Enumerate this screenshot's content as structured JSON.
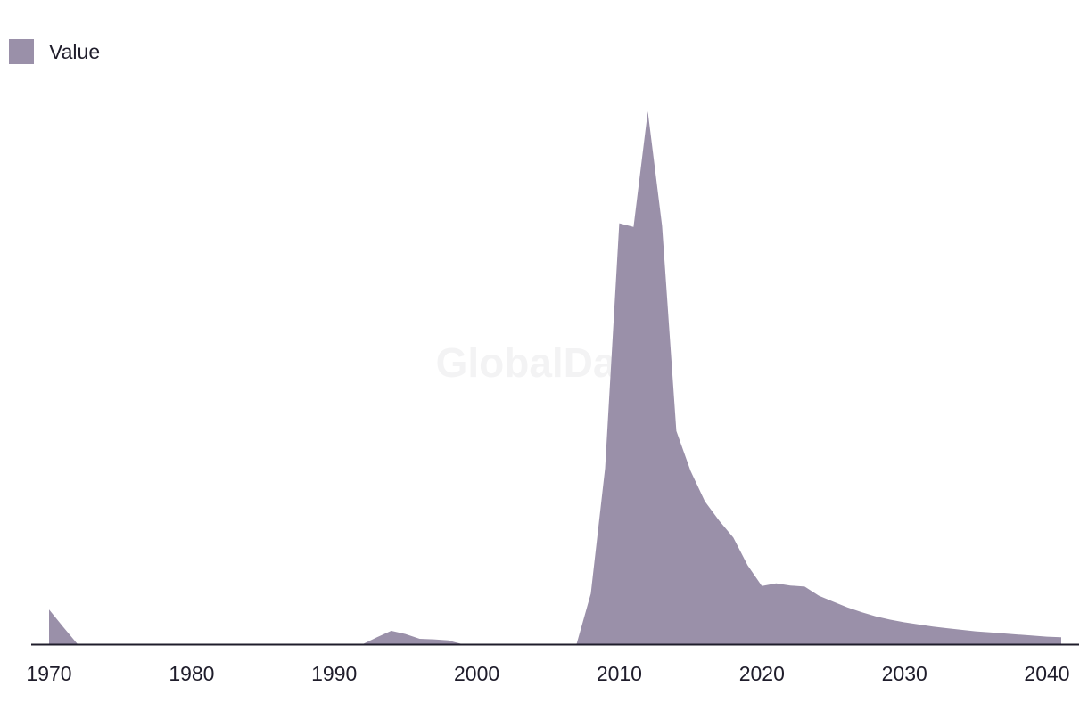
{
  "watermark": "GlobalData",
  "chart_data": {
    "type": "area",
    "title": "",
    "xlabel": "",
    "ylabel": "",
    "xlim": [
      1970,
      2041
    ],
    "ylim": [
      0,
      100
    ],
    "grid": false,
    "legend_position": "top-left",
    "color": "#9a90a9",
    "axis_color": "#1f1d2b",
    "x_ticks": [
      1970,
      1980,
      1990,
      2000,
      2010,
      2020,
      2030,
      2040
    ],
    "x_tick_labels": [
      "1970",
      "1980",
      "1990",
      "2000",
      "2010",
      "2020",
      "2030",
      "2040"
    ],
    "series": [
      {
        "name": "Value",
        "points": [
          [
            1970,
            6.5
          ],
          [
            1971,
            3.2
          ],
          [
            1972,
            0
          ],
          [
            1973,
            0
          ],
          [
            1974,
            0
          ],
          [
            1975,
            0
          ],
          [
            1976,
            0
          ],
          [
            1977,
            0
          ],
          [
            1978,
            0
          ],
          [
            1979,
            0
          ],
          [
            1980,
            0
          ],
          [
            1981,
            0
          ],
          [
            1982,
            0
          ],
          [
            1983,
            0
          ],
          [
            1984,
            0
          ],
          [
            1985,
            0
          ],
          [
            1986,
            0
          ],
          [
            1987,
            0
          ],
          [
            1988,
            0
          ],
          [
            1989,
            0
          ],
          [
            1990,
            0
          ],
          [
            1991,
            0
          ],
          [
            1992,
            0
          ],
          [
            1993,
            1.3
          ],
          [
            1994,
            2.5
          ],
          [
            1995,
            1.9
          ],
          [
            1996,
            1.0
          ],
          [
            1997,
            0.9
          ],
          [
            1998,
            0.7
          ],
          [
            1999,
            0
          ],
          [
            2000,
            0
          ],
          [
            2001,
            0
          ],
          [
            2002,
            0
          ],
          [
            2003,
            0
          ],
          [
            2004,
            0
          ],
          [
            2005,
            0
          ],
          [
            2006,
            0
          ],
          [
            2007,
            0
          ],
          [
            2008,
            9.5
          ],
          [
            2009,
            33.0
          ],
          [
            2010,
            79.0
          ],
          [
            2011,
            78.3
          ],
          [
            2012,
            100.0
          ],
          [
            2013,
            78.5
          ],
          [
            2014,
            40.0
          ],
          [
            2015,
            32.5
          ],
          [
            2016,
            26.8
          ],
          [
            2017,
            23.2
          ],
          [
            2018,
            20.0
          ],
          [
            2019,
            14.8
          ],
          [
            2020,
            10.9
          ],
          [
            2021,
            11.4
          ],
          [
            2022,
            11.0
          ],
          [
            2023,
            10.8
          ],
          [
            2024,
            9.1
          ],
          [
            2025,
            8.0
          ],
          [
            2026,
            6.9
          ],
          [
            2027,
            6.0
          ],
          [
            2028,
            5.2
          ],
          [
            2029,
            4.6
          ],
          [
            2030,
            4.1
          ],
          [
            2031,
            3.7
          ],
          [
            2032,
            3.3
          ],
          [
            2033,
            3.0
          ],
          [
            2034,
            2.7
          ],
          [
            2035,
            2.4
          ],
          [
            2036,
            2.2
          ],
          [
            2037,
            2.0
          ],
          [
            2038,
            1.8
          ],
          [
            2039,
            1.6
          ],
          [
            2040,
            1.4
          ],
          [
            2041,
            1.3
          ]
        ]
      }
    ]
  }
}
